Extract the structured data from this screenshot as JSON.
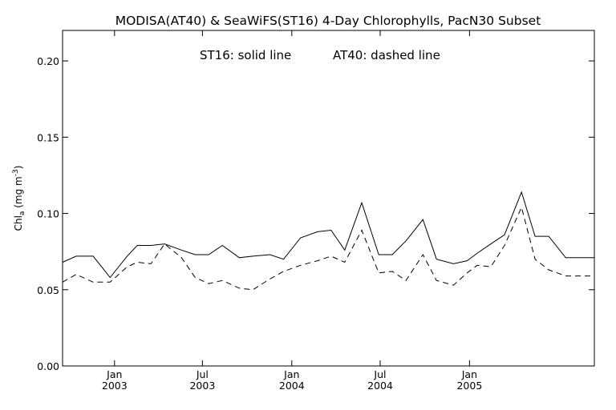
{
  "chart_data": {
    "type": "line",
    "title": "MODISA(AT40) & SeaWiFS(ST16) 4-Day Chlorophylls, PacN30 Subset",
    "annotation_solid": "ST16: solid line",
    "annotation_dashed": "AT40: dashed line",
    "ylabel": {
      "main": "Chl",
      "sub": "a",
      "units_open": " (mg m",
      "units_sup": "-3",
      "units_close": ")"
    },
    "ylim": [
      0.0,
      0.22
    ],
    "xlim": [
      "2002-09-16",
      "2005-09-15"
    ],
    "yticks": [
      {
        "value": 0.0,
        "label": "0.00"
      },
      {
        "value": 0.05,
        "label": "0.05"
      },
      {
        "value": 0.1,
        "label": "0.10"
      },
      {
        "value": 0.15,
        "label": "0.15"
      },
      {
        "value": 0.2,
        "label": "0.20"
      }
    ],
    "xticks": [
      {
        "date": "2003-01-01",
        "month": "Jan",
        "year": "2003"
      },
      {
        "date": "2003-07-01",
        "month": "Jul",
        "year": "2003"
      },
      {
        "date": "2004-01-01",
        "month": "Jan",
        "year": "2004"
      },
      {
        "date": "2004-07-01",
        "month": "Jul",
        "year": "2004"
      },
      {
        "date": "2005-01-01",
        "month": "Jan",
        "year": "2005"
      }
    ],
    "grid": false,
    "series": [
      {
        "name": "ST16",
        "style": "solid",
        "x": [
          "2002-09-16",
          "2002-10-14",
          "2002-11-18",
          "2002-12-23",
          "2003-01-27",
          "2003-02-17",
          "2003-03-17",
          "2003-04-14",
          "2003-05-19",
          "2003-06-16",
          "2003-07-14",
          "2003-08-11",
          "2003-09-15",
          "2003-10-13",
          "2003-11-17",
          "2003-12-15",
          "2004-01-19",
          "2004-02-23",
          "2004-03-22",
          "2004-04-19",
          "2004-05-24",
          "2004-06-28",
          "2004-07-26",
          "2004-08-23",
          "2004-09-27",
          "2004-10-25",
          "2004-11-29",
          "2004-12-27",
          "2005-01-17",
          "2005-02-14",
          "2005-03-14",
          "2005-04-18",
          "2005-05-16",
          "2005-06-13",
          "2005-07-18",
          "2005-08-15",
          "2005-09-15"
        ],
        "values": [
          0.068,
          0.072,
          0.072,
          0.058,
          0.072,
          0.079,
          0.079,
          0.08,
          0.076,
          0.073,
          0.073,
          0.079,
          0.071,
          0.072,
          0.073,
          0.07,
          0.084,
          0.088,
          0.089,
          0.076,
          0.107,
          0.073,
          0.073,
          0.082,
          0.096,
          0.07,
          0.067,
          0.069,
          0.074,
          0.08,
          0.086,
          0.114,
          0.085,
          0.085,
          0.071,
          0.071,
          0.071
        ]
      },
      {
        "name": "AT40",
        "style": "dashed",
        "x": [
          "2002-09-16",
          "2002-10-14",
          "2002-11-18",
          "2002-12-23",
          "2003-01-27",
          "2003-02-17",
          "2003-03-17",
          "2003-04-14",
          "2003-05-19",
          "2003-06-16",
          "2003-07-14",
          "2003-08-11",
          "2003-09-15",
          "2003-10-13",
          "2003-11-17",
          "2003-12-15",
          "2004-01-19",
          "2004-02-23",
          "2004-03-22",
          "2004-04-19",
          "2004-05-24",
          "2004-06-28",
          "2004-07-26",
          "2004-08-23",
          "2004-09-27",
          "2004-10-25",
          "2004-11-29",
          "2004-12-27",
          "2005-01-17",
          "2005-02-14",
          "2005-03-14",
          "2005-04-18",
          "2005-05-16",
          "2005-06-13",
          "2005-07-18",
          "2005-08-15",
          "2005-09-15"
        ],
        "values": [
          0.055,
          0.06,
          0.055,
          0.055,
          0.065,
          0.068,
          0.067,
          0.08,
          0.071,
          0.058,
          0.054,
          0.056,
          0.051,
          0.05,
          0.057,
          0.062,
          0.066,
          0.069,
          0.072,
          0.068,
          0.089,
          0.061,
          0.062,
          0.056,
          0.073,
          0.056,
          0.053,
          0.061,
          0.066,
          0.065,
          0.079,
          0.104,
          0.07,
          0.063,
          0.059,
          0.059,
          0.059
        ]
      }
    ]
  }
}
